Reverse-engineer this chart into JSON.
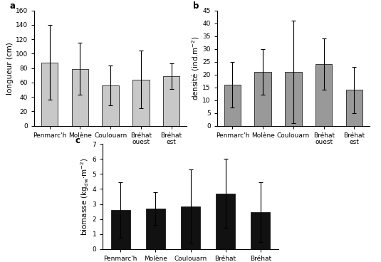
{
  "categories": [
    "Penmarc'h",
    "Molène",
    "Coulouarn",
    "Bréhat\nouest",
    "Bréhat\nest"
  ],
  "panel_a": {
    "values": [
      88,
      79,
      56,
      64,
      69
    ],
    "errors": [
      52,
      36,
      28,
      40,
      18
    ],
    "ylabel": "longueur (cm)",
    "ylim": [
      0,
      160
    ],
    "yticks": [
      0,
      20,
      40,
      60,
      80,
      100,
      120,
      140,
      160
    ],
    "color": "#c8c8c8",
    "label": "a"
  },
  "panel_b": {
    "values": [
      16,
      21,
      21,
      24,
      14
    ],
    "errors": [
      9,
      9,
      20,
      10,
      9
    ],
    "ylabel": "densité (ind.m⁻²)",
    "ylim": [
      0,
      45
    ],
    "yticks": [
      0,
      5,
      10,
      15,
      20,
      25,
      30,
      35,
      40,
      45
    ],
    "color": "#999999",
    "label": "b"
  },
  "panel_c": {
    "values": [
      2.6,
      2.7,
      2.85,
      3.7,
      2.45
    ],
    "errors": [
      1.85,
      1.1,
      2.45,
      2.3,
      2.0
    ],
    "ylim": [
      0,
      7
    ],
    "yticks": [
      0,
      1,
      2,
      3,
      4,
      5,
      6,
      7
    ],
    "color": "#111111",
    "label": "c"
  },
  "background_color": "#ffffff",
  "fontsize": 7.5,
  "tick_fontsize": 6.5
}
